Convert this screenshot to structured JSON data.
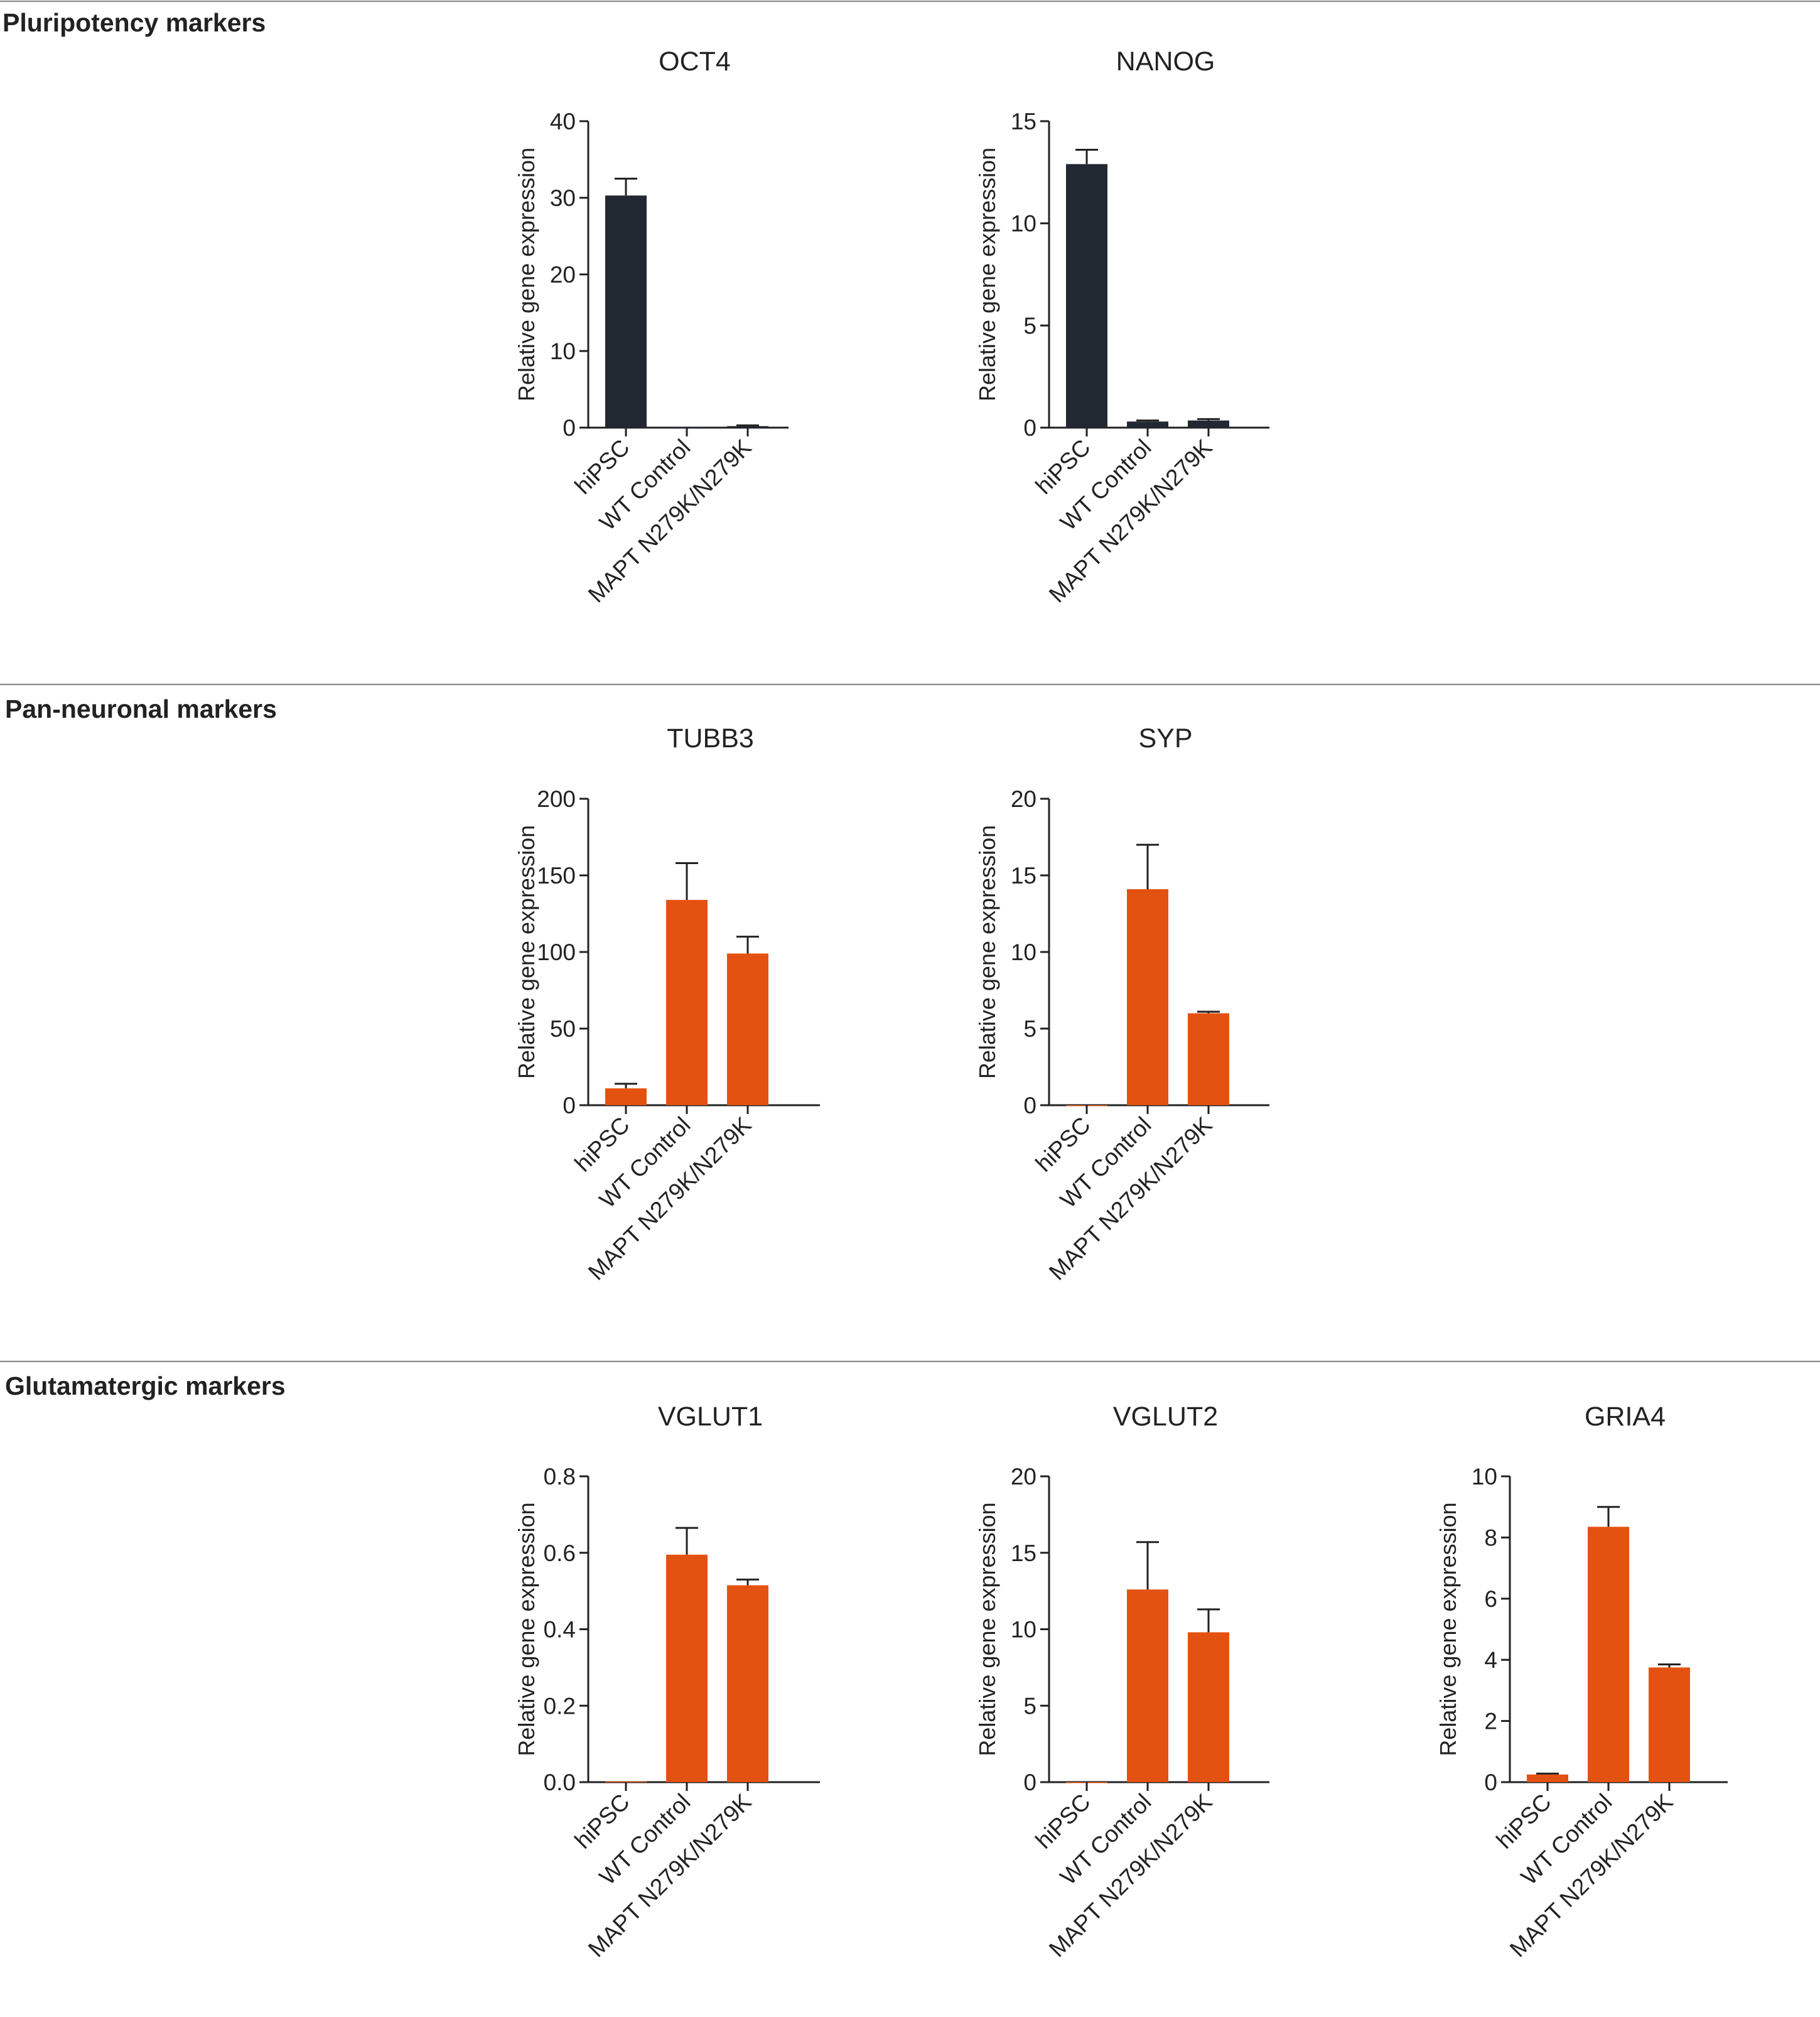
{
  "colors": {
    "dark": "#222831",
    "orange": "#e45212",
    "rule": "#8a8a8a",
    "text": "#222222"
  },
  "sections": [
    {
      "title": "Pluripotency markers"
    },
    {
      "title": "Pan-neuronal markers"
    },
    {
      "title": "Glutamatergic markers"
    }
  ],
  "chart_data": [
    {
      "type": "bar",
      "section": 0,
      "title": "OCT4",
      "ylabel": "Relative gene expression",
      "xlabel": "",
      "categories": [
        "hiPSC",
        "WT Control",
        "MAPT N279K/N279K"
      ],
      "values": [
        30.3,
        0.1,
        0.2
      ],
      "errors": [
        2.2,
        0,
        0.1
      ],
      "ylim": [
        0,
        40
      ],
      "yticks": [
        0,
        10,
        20,
        30,
        40
      ],
      "ytick_labels": [
        "0",
        "10",
        "20",
        "30",
        "40"
      ],
      "color": "dark",
      "grid": false
    },
    {
      "type": "bar",
      "section": 0,
      "title": "NANOG",
      "ylabel": "Relative gene expression",
      "xlabel": "",
      "categories": [
        "hiPSC",
        "WT Control",
        "MAPT N279K/N279K"
      ],
      "values": [
        12.9,
        0.3,
        0.35
      ],
      "errors": [
        0.7,
        0.05,
        0.07
      ],
      "ylim": [
        0,
        15
      ],
      "yticks": [
        0,
        5,
        10,
        15
      ],
      "ytick_labels": [
        "0",
        "5",
        "10",
        "15"
      ],
      "color": "dark",
      "grid": false
    },
    {
      "type": "bar",
      "section": 1,
      "title": "TUBB3",
      "ylabel": "Relative gene expression",
      "xlabel": "",
      "categories": [
        "hiPSC",
        "WT Control",
        "MAPT N279K/N279K"
      ],
      "values": [
        11,
        134,
        99
      ],
      "errors": [
        3,
        24,
        11
      ],
      "ylim": [
        0,
        200
      ],
      "yticks": [
        0,
        50,
        100,
        150,
        200
      ],
      "ytick_labels": [
        "0",
        "50",
        "100",
        "150",
        "200"
      ],
      "color": "orange",
      "grid": false
    },
    {
      "type": "bar",
      "section": 1,
      "title": "SYP",
      "ylabel": "Relative gene expression",
      "xlabel": "",
      "categories": [
        "hiPSC",
        "WT Control",
        "MAPT N279K/N279K"
      ],
      "values": [
        0,
        14.1,
        6.0
      ],
      "errors": [
        0,
        2.9,
        0.1
      ],
      "ylim": [
        0,
        20
      ],
      "yticks": [
        0,
        5,
        10,
        15,
        20
      ],
      "ytick_labels": [
        "0",
        "5",
        "10",
        "15",
        "20"
      ],
      "color": "orange",
      "grid": false
    },
    {
      "type": "bar",
      "section": 2,
      "title": "VGLUT1",
      "ylabel": "Relative gene expression",
      "xlabel": "",
      "categories": [
        "hiPSC",
        "WT Control",
        "MAPT N279K/N279K"
      ],
      "values": [
        0.002,
        0.595,
        0.515
      ],
      "errors": [
        0,
        0.07,
        0.015
      ],
      "ylim": [
        0,
        0.8
      ],
      "yticks": [
        0,
        0.2,
        0.4,
        0.6,
        0.8
      ],
      "ytick_labels": [
        "0.0",
        "0.2",
        "0.4",
        "0.6",
        "0.8"
      ],
      "color": "orange",
      "grid": false
    },
    {
      "type": "bar",
      "section": 2,
      "title": "VGLUT2",
      "ylabel": "Relative gene expression",
      "xlabel": "",
      "categories": [
        "hiPSC",
        "WT Control",
        "MAPT N279K/N279K"
      ],
      "values": [
        0,
        12.6,
        9.8
      ],
      "errors": [
        0,
        3.1,
        1.5
      ],
      "ylim": [
        0,
        20
      ],
      "yticks": [
        0,
        5,
        10,
        15,
        20
      ],
      "ytick_labels": [
        "0",
        "5",
        "10",
        "15",
        "20"
      ],
      "color": "orange",
      "grid": false
    },
    {
      "type": "bar",
      "section": 2,
      "title": "GRIA4",
      "ylabel": "Relative gene expression",
      "xlabel": "",
      "categories": [
        "hiPSC",
        "WT Control",
        "MAPT N279K/N279K"
      ],
      "values": [
        0.25,
        8.35,
        3.75
      ],
      "errors": [
        0.03,
        0.65,
        0.1
      ],
      "ylim": [
        0,
        10
      ],
      "yticks": [
        0,
        2,
        4,
        6,
        8,
        10
      ],
      "ytick_labels": [
        "0",
        "2",
        "4",
        "6",
        "8",
        "10"
      ],
      "color": "orange",
      "grid": false
    }
  ]
}
